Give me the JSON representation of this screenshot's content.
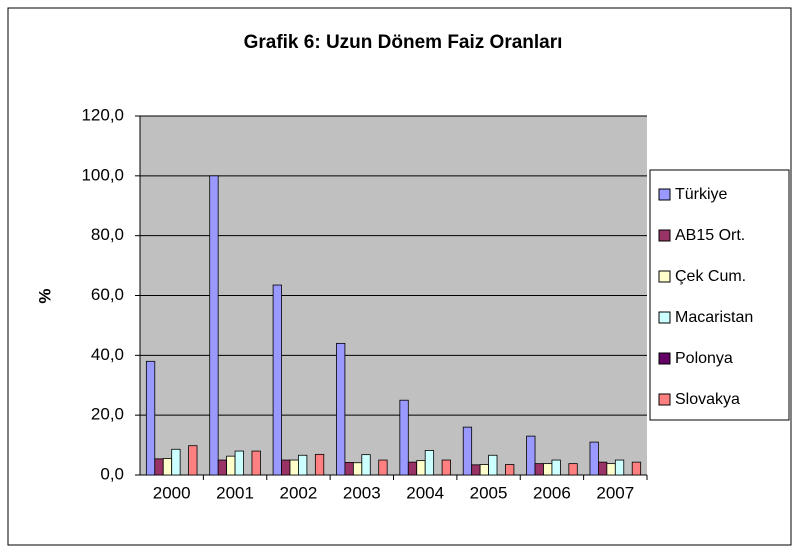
{
  "chart_data": {
    "type": "bar",
    "title": "Grafik 6: Uzun Dönem Faiz Oranları",
    "y_label": "%",
    "categories": [
      "2000",
      "2001",
      "2002",
      "2003",
      "2004",
      "2005",
      "2006",
      "2007"
    ],
    "series": [
      {
        "name": "Türkiye",
        "color": "#9999ff",
        "values": [
          38,
          100,
          63.5,
          44,
          25,
          16,
          13,
          11
        ]
      },
      {
        "name": "AB15 Ort.",
        "color": "#993366",
        "values": [
          5.4,
          5.0,
          5.0,
          4.2,
          4.3,
          3.4,
          3.8,
          4.3
        ]
      },
      {
        "name": "Çek Cum.",
        "color": "#ffffcc",
        "values": [
          5.5,
          6.3,
          5.0,
          4.1,
          4.8,
          3.5,
          3.8,
          3.8
        ]
      },
      {
        "name": "Macaristan",
        "color": "#ccffff",
        "values": [
          8.6,
          8.0,
          6.6,
          6.8,
          8.2,
          6.6,
          5.0,
          5.0
        ]
      },
      {
        "name": "Polonya",
        "color": "#660066",
        "values": [
          null,
          null,
          null,
          null,
          null,
          null,
          null,
          null
        ]
      },
      {
        "name": "Slovakya",
        "color": "#ff8080",
        "values": [
          9.8,
          8.0,
          6.9,
          5.0,
          5.0,
          3.5,
          3.8,
          4.3
        ]
      }
    ],
    "ylim": [
      0,
      120
    ],
    "yticks": [
      {
        "value": 0,
        "label": "0,0"
      },
      {
        "value": 20,
        "label": "20,0"
      },
      {
        "value": 40,
        "label": "40,0"
      },
      {
        "value": 60,
        "label": "60,0"
      },
      {
        "value": 80,
        "label": "80,0"
      },
      {
        "value": 100,
        "label": "100,0"
      },
      {
        "value": 120,
        "label": "120,0"
      }
    ],
    "grid": true,
    "legend": "right"
  }
}
